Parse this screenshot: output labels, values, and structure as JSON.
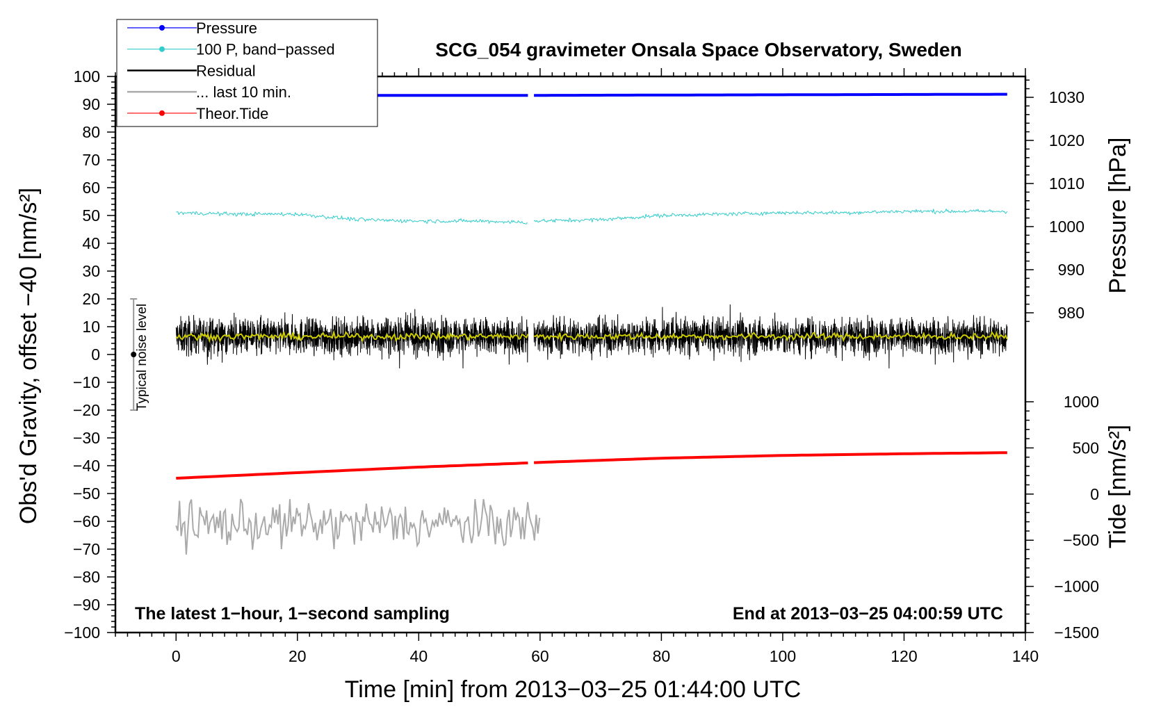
{
  "chart_data": {
    "type": "line",
    "title": "SCG_054 gravimeter Onsala Space Observatory, Sweden",
    "xlabel": "Time [min] from 2013−03−25 01:44:00 UTC",
    "ylabel_left": "Obs'd Gravity, offset −40 [nm/s²]",
    "ylabel_pressure": "Pressure [hPa]",
    "ylabel_tide": "Tide [nm/s²]",
    "xlim": [
      -10,
      140
    ],
    "ylim": [
      -100,
      100
    ],
    "x_ticks": [
      0,
      20,
      40,
      60,
      80,
      100,
      120,
      140
    ],
    "x_tick_labels": [
      "0",
      "20",
      "40",
      "60",
      "80",
      "100",
      "120",
      "140"
    ],
    "y_ticks": [
      -100,
      -90,
      -80,
      -70,
      -60,
      -50,
      -40,
      -30,
      -20,
      -10,
      0,
      10,
      20,
      30,
      40,
      50,
      60,
      70,
      80,
      90,
      100
    ],
    "y_tick_labels": [
      "−100",
      "−90",
      "−80",
      "−70",
      "−60",
      "−50",
      "−40",
      "−30",
      "−20",
      "−10",
      "0",
      "10",
      "20",
      "30",
      "40",
      "50",
      "60",
      "70",
      "80",
      "90",
      "100"
    ],
    "pressure_axis": {
      "ticks": [
        980,
        990,
        1000,
        1010,
        1020,
        1030
      ],
      "tick_labels": [
        "980",
        "990",
        "1000",
        "1010",
        "1020",
        "1030"
      ],
      "left_equiv": [
        [
          980,
          15
        ],
        [
          1030,
          92.5
        ]
      ]
    },
    "tide_axis": {
      "ticks": [
        -1500,
        -1000,
        -500,
        0,
        500,
        1000
      ],
      "tick_labels": [
        "−1500",
        "−1000",
        "−500",
        "0",
        "500",
        "1000"
      ],
      "left_equiv": [
        [
          -1500,
          -100
        ],
        [
          1000,
          -17
        ]
      ]
    },
    "legend": [
      {
        "label": "Pressure",
        "color": "#0000ff",
        "marker": true
      },
      {
        "label": "100 P, band−passed",
        "color": "#33cccc",
        "marker": true
      },
      {
        "label": "Residual",
        "color": "#000000",
        "marker": false
      },
      {
        "label": "... last 10 min.",
        "color": "#aaaaaa",
        "marker": false
      },
      {
        "label": "Theor.Tide",
        "color": "#ff0000",
        "marker": true
      }
    ],
    "series": [
      {
        "name": "Pressure",
        "color": "#0000ff",
        "x_range": [
          0,
          137
        ],
        "gap": [
          58,
          59
        ],
        "values": [
          [
            0,
            93.2
          ],
          [
            58,
            93.2
          ],
          [
            59,
            93.2
          ],
          [
            78,
            93.3
          ],
          [
            137,
            93.6
          ]
        ]
      },
      {
        "name": "100 P, band-passed",
        "color": "#33cccc",
        "x_range": [
          0,
          137
        ],
        "gap": [
          58,
          59
        ],
        "values": [
          [
            0,
            51
          ],
          [
            10,
            50.5
          ],
          [
            20,
            50.5
          ],
          [
            30,
            48.5
          ],
          [
            40,
            48
          ],
          [
            50,
            48
          ],
          [
            58,
            47.5
          ],
          [
            59,
            48
          ],
          [
            70,
            48.5
          ],
          [
            80,
            50
          ],
          [
            90,
            50.5
          ],
          [
            100,
            51
          ],
          [
            110,
            51
          ],
          [
            120,
            51.5
          ],
          [
            130,
            51.5
          ],
          [
            137,
            51.5
          ]
        ]
      },
      {
        "name": "Residual",
        "color": "#000000",
        "x_range": [
          0,
          137
        ],
        "gap": [
          58,
          59
        ],
        "mean": 6.5,
        "spread": [
          -5,
          18
        ]
      },
      {
        "name": "Residual (smoothed)",
        "color": "#cccc00",
        "x_range": [
          0,
          137
        ],
        "gap": [
          58,
          59
        ],
        "mean": 6.5
      },
      {
        "name": "... last 10 min.",
        "color": "#aaaaaa",
        "x_range": [
          0,
          60
        ],
        "mean": -61,
        "spread": [
          -72,
          -52
        ]
      },
      {
        "name": "Theor.Tide",
        "color": "#ff0000",
        "x_range": [
          0,
          137
        ],
        "gap": [
          58,
          59
        ],
        "values": [
          [
            0,
            -44.5
          ],
          [
            20,
            -42.5
          ],
          [
            40,
            -40.5
          ],
          [
            58,
            -39
          ],
          [
            60,
            -38.8
          ],
          [
            80,
            -37.3
          ],
          [
            100,
            -36.3
          ],
          [
            120,
            -35.7
          ],
          [
            137,
            -35.3
          ]
        ]
      }
    ],
    "noise_marker": {
      "label": "Typical noise level",
      "x": -7,
      "center": 0,
      "range": [
        -20,
        20
      ]
    },
    "annotations": {
      "bottom_left": "The latest 1−hour, 1−second sampling",
      "bottom_right": "End at 2013−03−25 04:00:59 UTC"
    }
  }
}
